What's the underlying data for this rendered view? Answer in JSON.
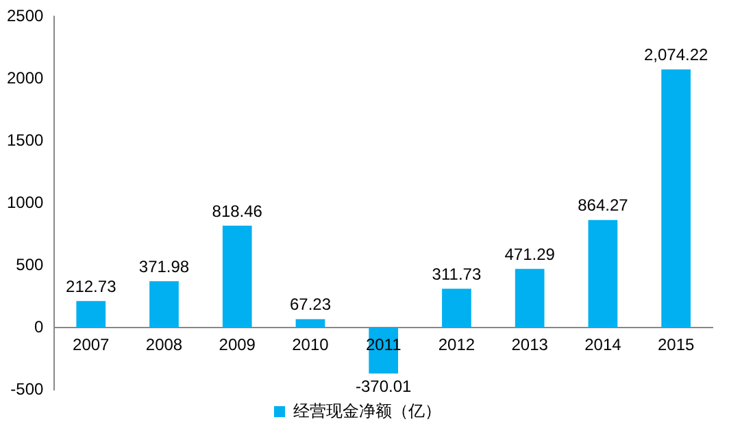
{
  "chart_data": {
    "type": "bar",
    "categories": [
      "2007",
      "2008",
      "2009",
      "2010",
      "2011",
      "2012",
      "2013",
      "2014",
      "2015"
    ],
    "series": [
      {
        "name": "经营现金净额（亿）",
        "color": "#00b0f0",
        "values": [
          212.73,
          371.98,
          818.46,
          67.23,
          -370.01,
          311.73,
          471.29,
          864.27,
          2074.22
        ],
        "value_labels": [
          "212.73",
          "371.98",
          "818.46",
          "67.23",
          "-370.01",
          "311.73",
          "471.29",
          "864.27",
          "2,074.22"
        ]
      }
    ],
    "ylim": [
      -500,
      2500
    ],
    "yticks": [
      -500,
      0,
      500,
      1000,
      1500,
      2000,
      2500
    ],
    "grid": false,
    "legend": "bottom"
  }
}
